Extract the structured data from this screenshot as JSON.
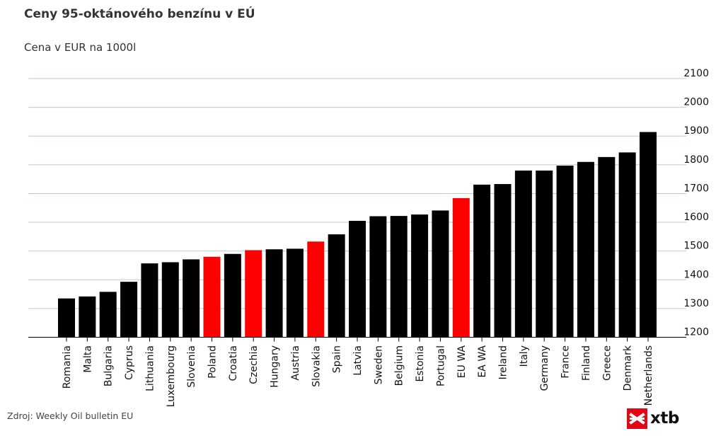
{
  "header": {
    "title": "Ceny 95-oktánového benzínu v EÚ",
    "subtitle": "Cena v EUR na 1000l"
  },
  "footer": {
    "source": "Zdroj: Weekly Oil bulletin EU",
    "logo_text": "xtb"
  },
  "colors": {
    "default_bar": "#000000",
    "highlight_bar": "#ff0000",
    "gridline": "#b9cbc8",
    "logo_red": "#e30613"
  },
  "chart_data": {
    "type": "bar",
    "title": "Ceny 95-oktánového benzínu v EÚ",
    "subtitle": "Cena v EUR na 1000l",
    "xlabel": "",
    "ylabel": "",
    "ylim": [
      1200,
      2100
    ],
    "yticks": [
      1200,
      1300,
      1400,
      1500,
      1600,
      1700,
      1800,
      1900,
      2000,
      2100
    ],
    "y_axis_position": "right",
    "grid": true,
    "categories": [
      "Romania",
      "Malta",
      "Bulgaria",
      "Cyprus",
      "Lithuania",
      "Luxembourg",
      "Slovenia",
      "Poland",
      "Croatia",
      "Czechia",
      "Hungary",
      "Austria",
      "Slovakia",
      "Spain",
      "Latvia",
      "Sweden",
      "Belgium",
      "Estonia",
      "Portugal",
      "EU WA",
      "EA WA",
      "Ireland",
      "Italy",
      "Germany",
      "France",
      "Finland",
      "Greece",
      "Denmark",
      "Netherlands"
    ],
    "values": [
      1335,
      1342,
      1358,
      1393,
      1457,
      1461,
      1471,
      1480,
      1490,
      1503,
      1506,
      1508,
      1533,
      1558,
      1605,
      1621,
      1622,
      1627,
      1641,
      1684,
      1731,
      1733,
      1780,
      1780,
      1797,
      1810,
      1827,
      1843,
      1914
    ],
    "highlighted": [
      "Poland",
      "Czechia",
      "Slovakia",
      "EU WA"
    ]
  }
}
